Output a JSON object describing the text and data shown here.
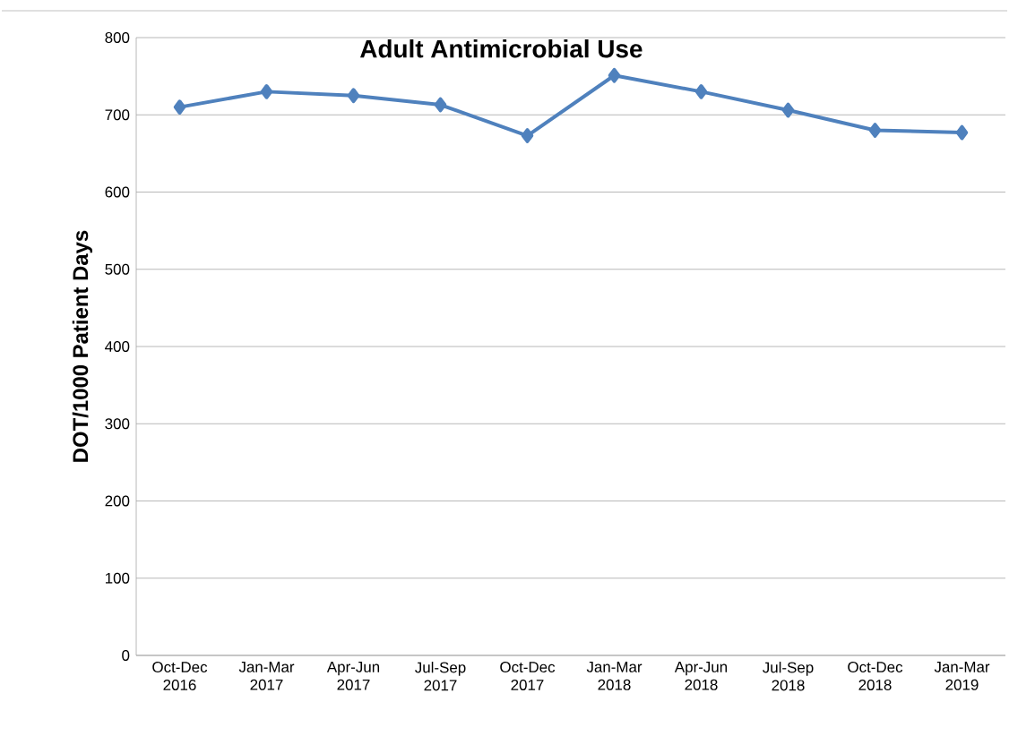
{
  "chart_data": {
    "type": "line",
    "title": "Adult Antimicrobial Use",
    "ylabel": "DOT/1000 Patient Days",
    "categories": [
      "Oct-Dec 2016",
      "Jan-Mar 2017",
      "Apr-Jun 2017",
      "Jul-Sep 2017",
      "Oct-Dec 2017",
      "Jan-Mar 2018",
      "Apr-Jun 2018",
      "Jul-Sep 2018",
      "Oct-Dec 2018",
      "Jan-Mar 2019"
    ],
    "series": [
      {
        "color": "#4f81bd",
        "values": [
          710,
          730,
          725,
          713,
          673,
          751,
          730,
          706,
          680,
          677
        ]
      }
    ],
    "ylim": [
      0,
      800
    ],
    "yticks": [
      0,
      100,
      200,
      300,
      400,
      500,
      600,
      700,
      800
    ],
    "grid": "y",
    "marker": "diamond",
    "line_style": "solid"
  }
}
